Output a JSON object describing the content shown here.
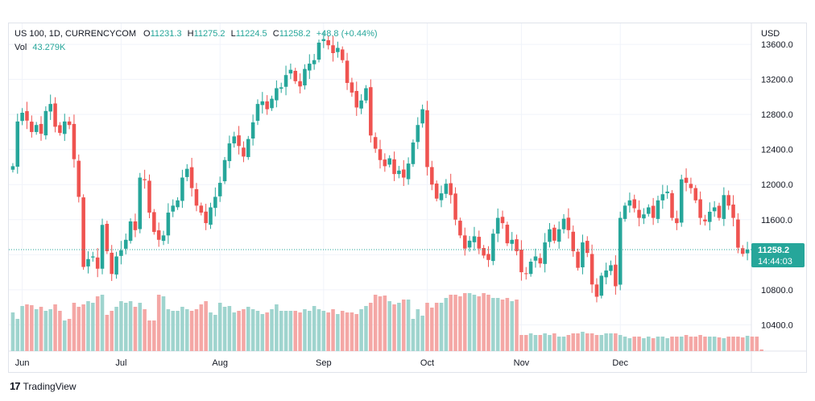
{
  "legend": {
    "symbol_line": "US 100, 1D, CURRENCYCOM",
    "open_label": "O",
    "open": "11231.3",
    "high_label": "H",
    "high": "11275.2",
    "low_label": "L",
    "low": "11224.5",
    "close_label": "C",
    "close": "11258.2",
    "change": "+48.8 (+0.44%)",
    "vol_label": "Vol",
    "vol_value": "43.279K"
  },
  "price_axis": {
    "currency": "USD"
  },
  "last_price_tag": {
    "price": "11258.2",
    "countdown": "14:44:03"
  },
  "footer": {
    "logo_text": "17",
    "brand": "TradingView"
  },
  "colors": {
    "up": "#26a69a",
    "down": "#ef5350",
    "vol_up": "#9fd4ce",
    "vol_down": "#f4a7a5",
    "grid": "#f0f3fa",
    "axis_text": "#131722"
  },
  "chart_data": {
    "type": "candlestick",
    "y_ticks": [
      10400,
      10800,
      11200,
      11600,
      12000,
      12400,
      12800,
      13200,
      13600
    ],
    "y_tick_labels": [
      "10400.0",
      "10800.0",
      "11200.0",
      "11600.0",
      "12000.0",
      "12400.0",
      "12800.0",
      "13200.0",
      "13600.0"
    ],
    "ylim": [
      10100,
      13840
    ],
    "x_tick_labels": [
      {
        "label": "Jun",
        "index": 2
      },
      {
        "label": "Jul",
        "index": 23
      },
      {
        "label": "Aug",
        "index": 44
      },
      {
        "label": "Sep",
        "index": 66
      },
      {
        "label": "Oct",
        "index": 88
      },
      {
        "label": "Nov",
        "index": 108
      },
      {
        "label": "Dec",
        "index": 129
      }
    ],
    "grid": true,
    "closes": [
      12210,
      12720,
      12820,
      12730,
      12600,
      12680,
      12580,
      12840,
      12920,
      12660,
      12590,
      12720,
      12680,
      12290,
      11860,
      11060,
      11150,
      11180,
      11040,
      11540,
      11240,
      10980,
      11180,
      11250,
      11370,
      11580,
      11480,
      12080,
      12050,
      11680,
      11460,
      11370,
      11420,
      11680,
      11760,
      11820,
      12080,
      12180,
      11960,
      11760,
      11680,
      11560,
      11740,
      11860,
      12020,
      12280,
      12470,
      12550,
      12440,
      12320,
      12520,
      12710,
      12920,
      12950,
      12860,
      12980,
      13100,
      13110,
      13250,
      13310,
      13180,
      13120,
      13320,
      13380,
      13420,
      13620,
      13660,
      13590,
      13500,
      13560,
      13420,
      13160,
      13050,
      12880,
      12960,
      13100,
      12560,
      12410,
      12280,
      12210,
      12300,
      12120,
      12160,
      12080,
      12240,
      12480,
      12680,
      12860,
      12200,
      12000,
      11840,
      11900,
      12010,
      11880,
      11600,
      11420,
      11270,
      11360,
      11410,
      11270,
      11190,
      11140,
      11440,
      11620,
      11560,
      11330,
      11370,
      11240,
      11000,
      10980,
      11120,
      11180,
      11100,
      11340,
      11490,
      11360,
      11490,
      11610,
      11480,
      11240,
      11050,
      11340,
      11220,
      10860,
      10720,
      10960,
      11020,
      11080,
      10840,
      11620,
      11760,
      11820,
      11730,
      11620,
      11660,
      11740,
      11620,
      11820,
      11890,
      11920,
      11620,
      11560,
      12060,
      12020,
      11960,
      11820,
      11620,
      11580,
      11690,
      11740,
      11620,
      11880,
      11760,
      11620,
      11280,
      11210,
      11258
    ],
    "volumes": [
      48,
      40,
      56,
      58,
      57,
      52,
      55,
      50,
      52,
      58,
      50,
      38,
      40,
      60,
      55,
      58,
      62,
      60,
      68,
      70,
      45,
      50,
      55,
      62,
      60,
      62,
      55,
      60,
      52,
      38,
      38,
      70,
      68,
      52,
      50,
      50,
      55,
      52,
      50,
      52,
      58,
      62,
      48,
      45,
      60,
      55,
      56,
      48,
      50,
      52,
      55,
      52,
      50,
      46,
      48,
      52,
      58,
      50,
      50,
      50,
      50,
      48,
      52,
      50,
      56,
      52,
      50,
      48,
      52,
      46,
      50,
      48,
      48,
      46,
      52,
      56,
      60,
      70,
      68,
      69,
      62,
      58,
      60,
      64,
      64,
      40,
      52,
      44,
      60,
      54,
      60,
      60,
      66,
      70,
      70,
      68,
      72,
      72,
      70,
      68,
      72,
      70,
      66,
      66,
      64,
      66,
      62,
      64,
      20,
      20,
      22,
      20,
      20,
      22,
      20,
      22,
      18,
      18,
      20,
      22,
      22,
      24,
      22,
      22,
      20,
      20,
      22,
      22,
      22,
      20,
      18,
      16,
      18,
      18,
      16,
      18,
      16,
      18,
      18,
      16,
      18,
      18,
      18,
      20,
      18,
      18,
      20,
      18,
      18,
      18,
      17,
      16,
      18,
      18,
      18,
      17,
      19,
      18,
      18,
      2
    ]
  }
}
